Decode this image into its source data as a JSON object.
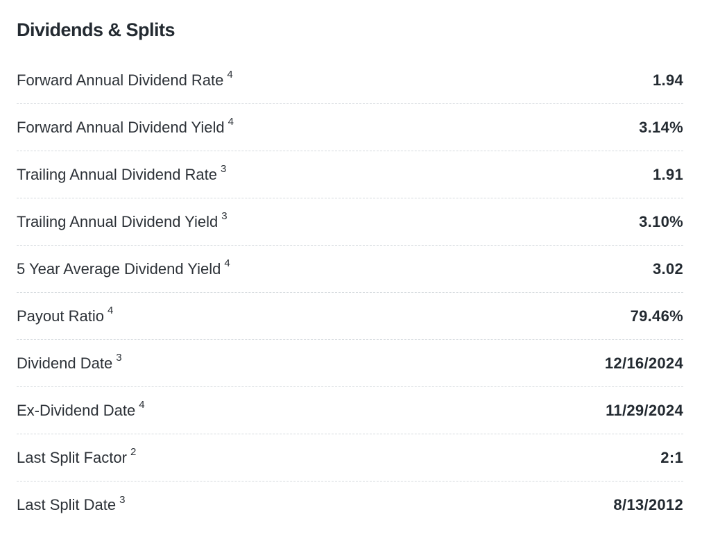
{
  "section": {
    "title": "Dividends & Splits"
  },
  "colors": {
    "title_text": "#232a31",
    "label_text": "#2c3137",
    "value_text": "#232a31",
    "divider": "#d4d9dd",
    "background": "#ffffff"
  },
  "table": {
    "rows": [
      {
        "label": "Forward Annual Dividend Rate",
        "footnote": "4",
        "value": "1.94"
      },
      {
        "label": "Forward Annual Dividend Yield",
        "footnote": "4",
        "value": "3.14%"
      },
      {
        "label": "Trailing Annual Dividend Rate",
        "footnote": "3",
        "value": "1.91"
      },
      {
        "label": "Trailing Annual Dividend Yield",
        "footnote": "3",
        "value": "3.10%"
      },
      {
        "label": "5 Year Average Dividend Yield",
        "footnote": "4",
        "value": "3.02"
      },
      {
        "label": "Payout Ratio",
        "footnote": "4",
        "value": "79.46%"
      },
      {
        "label": "Dividend Date",
        "footnote": "3",
        "value": "12/16/2024"
      },
      {
        "label": "Ex-Dividend Date",
        "footnote": "4",
        "value": "11/29/2024"
      },
      {
        "label": "Last Split Factor",
        "footnote": "2",
        "value": "2:1"
      },
      {
        "label": "Last Split Date",
        "footnote": "3",
        "value": "8/13/2012"
      }
    ]
  }
}
